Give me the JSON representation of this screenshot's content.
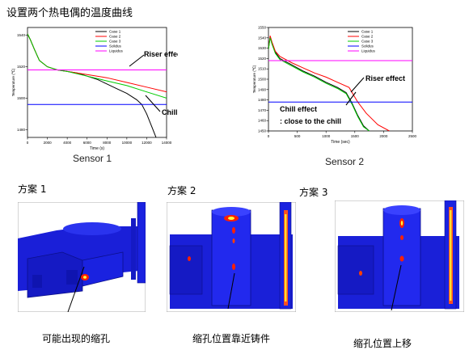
{
  "page_title": "设置两个热电偶的温度曲线",
  "colors": {
    "case1": "#000000",
    "case2": "#ff0000",
    "case3": "#00cc00",
    "solidus": "#0000ff",
    "liquidus": "#ff00ff",
    "annotation_arrow": "#000000",
    "casting_blue": "#1020e0",
    "hotspot_red": "#ff2000",
    "hotspot_yellow": "#ffff40"
  },
  "chart_data": [
    {
      "type": "line",
      "id": "sensor1",
      "caption": "Sensor 1",
      "xlabel": "Time (s)",
      "ylabel": "Temperature (℃)",
      "xlim": [
        0,
        14000
      ],
      "ylim": [
        1475,
        1545
      ],
      "xticks": [
        0,
        2000,
        4000,
        6000,
        8000,
        10000,
        12000,
        14000
      ],
      "yticks": [
        1480,
        1500,
        1520,
        1540
      ],
      "ytick_labels": [
        "1480",
        "1500",
        "1520",
        "1540"
      ],
      "legend": [
        "Case 1",
        "Case 2",
        "Case 3",
        "Solidus",
        "Liquidus"
      ],
      "legend_position": "top-right",
      "annotations": [
        "Riser effect",
        "Chill effect"
      ],
      "series": [
        {
          "name": "Case 1",
          "x": [
            0,
            300,
            700,
            1200,
            2000,
            3000,
            4000,
            5000,
            6000,
            7000,
            8000,
            9000,
            10000,
            11000,
            11500,
            12000,
            12500,
            13000
          ],
          "y": [
            1541,
            1537,
            1531,
            1524,
            1520,
            1518,
            1517,
            1516,
            1514,
            1512,
            1509,
            1506,
            1503,
            1499,
            1496,
            1490,
            1482,
            1474
          ]
        },
        {
          "name": "Case 2",
          "x": [
            0,
            300,
            700,
            1200,
            2000,
            3000,
            4000,
            6000,
            8000,
            10000,
            12000,
            14000
          ],
          "y": [
            1541,
            1537,
            1531,
            1524,
            1520,
            1518,
            1517,
            1515,
            1513,
            1510,
            1507,
            1504
          ]
        },
        {
          "name": "Case 3",
          "x": [
            0,
            300,
            700,
            1200,
            2000,
            3000,
            4000,
            6000,
            8000,
            10000,
            12000,
            14000
          ],
          "y": [
            1541,
            1537,
            1531,
            1524,
            1520,
            1518,
            1517,
            1514,
            1511,
            1508,
            1504,
            1500
          ]
        },
        {
          "name": "Solidus",
          "x": [
            0,
            14000
          ],
          "y": [
            1496,
            1496
          ]
        },
        {
          "name": "Liquidus",
          "x": [
            0,
            14000
          ],
          "y": [
            1518,
            1518
          ]
        }
      ]
    },
    {
      "type": "line",
      "id": "sensor2",
      "caption": "Sensor 2",
      "xlabel": "Time (sec)",
      "ylabel": "Temperature (℃)",
      "xlim": [
        0,
        2500
      ],
      "ylim": [
        1450,
        1550
      ],
      "xticks": [
        0,
        500,
        1000,
        1500,
        2000,
        2500
      ],
      "yticks": [
        1450,
        1460,
        1470,
        1480,
        1490,
        1500,
        1510,
        1520,
        1530,
        1540,
        1550
      ],
      "ytick_labels": [
        "1450",
        "1460",
        "1470",
        "1480",
        "1490",
        "1500",
        "1510",
        "1520",
        "1530",
        "1540",
        "1550"
      ],
      "legend": [
        "Case 1",
        "Case 2",
        "Case 3",
        "Solidus",
        "Liquidus"
      ],
      "legend_position": "top-right",
      "annotations": [
        "Riser effect",
        "Chill effect",
        ": close to the chill"
      ],
      "series": [
        {
          "name": "Case 1",
          "x": [
            0,
            30,
            60,
            120,
            200,
            400,
            600,
            800,
            1000,
            1200,
            1350,
            1450,
            1550,
            1650,
            1750
          ],
          "y": [
            1529,
            1541,
            1535,
            1526,
            1520,
            1514,
            1508,
            1503,
            1497,
            1492,
            1487,
            1477,
            1465,
            1455,
            1450
          ]
        },
        {
          "name": "Case 2",
          "x": [
            0,
            30,
            60,
            120,
            200,
            400,
            600,
            800,
            1000,
            1200,
            1400,
            1550,
            1700,
            1900,
            2100
          ],
          "y": [
            1529,
            1542,
            1536,
            1527,
            1522,
            1516,
            1511,
            1506,
            1502,
            1497,
            1492,
            1478,
            1467,
            1456,
            1450
          ]
        },
        {
          "name": "Case 3",
          "x": [
            0,
            30,
            60,
            120,
            200,
            400,
            600,
            800,
            1000,
            1200,
            1350,
            1450,
            1550,
            1650,
            1750
          ],
          "y": [
            1529,
            1540,
            1534,
            1525,
            1519,
            1513,
            1507,
            1502,
            1496,
            1491,
            1486,
            1476,
            1464,
            1454,
            1450
          ]
        },
        {
          "name": "Solidus",
          "x": [
            0,
            2500
          ],
          "y": [
            1478,
            1478
          ]
        },
        {
          "name": "Liquidus",
          "x": [
            0,
            2500
          ],
          "y": [
            1518,
            1518
          ]
        }
      ]
    }
  ],
  "schemes": [
    {
      "label": "方案 1",
      "caption": "可能出现的缩孔",
      "icon": "casting-shrinkage-sim-1"
    },
    {
      "label": "方案 2",
      "caption": "缩孔位置靠近铸件",
      "icon": "casting-shrinkage-sim-2"
    },
    {
      "label": "方案 3",
      "caption": "缩孔位置上移",
      "icon": "casting-shrinkage-sim-3"
    }
  ]
}
